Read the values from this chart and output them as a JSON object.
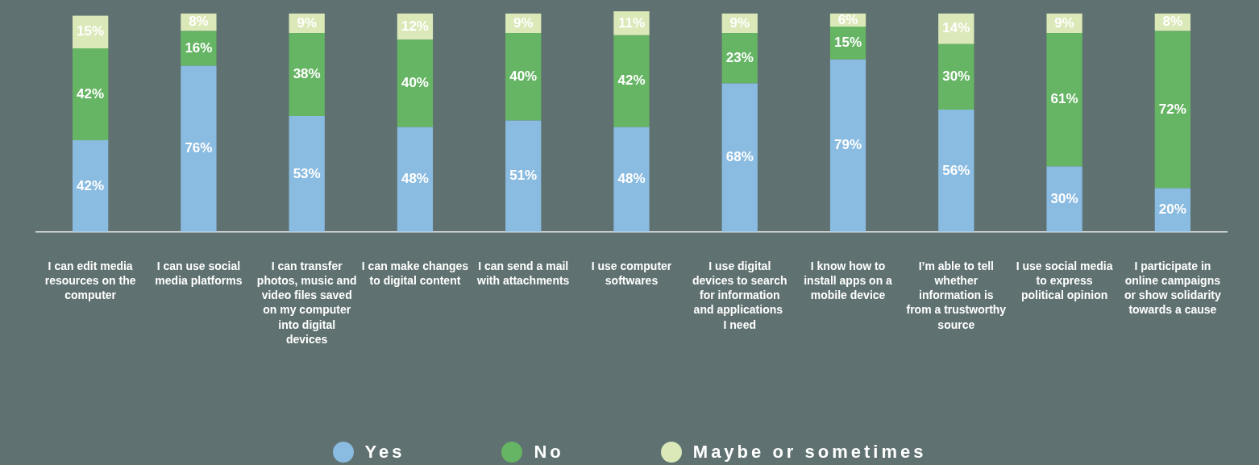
{
  "chart_data": {
    "type": "bar",
    "stacked": true,
    "legend": "bottom",
    "grid": false,
    "tick_labels": "x",
    "categories": [
      "I can edit media resources on the computer",
      "I can use social media platforms",
      "I can transfer photos, music and video files saved on my computer into digital devices",
      "I can make changes to digital content",
      "I can send a mail with attachments",
      "I use computer softwares",
      "I use digital devices to search for information and applications  I need",
      "I know how to install apps on a mobile device",
      "I’m able to tell whether information is from a trustworthy source",
      "I use social media to express political opinion",
      "I participate in online campaigns or show solidarity towards a cause"
    ],
    "series": [
      {
        "name": "Yes",
        "color": "#8abbe0",
        "values": [
          42,
          76,
          53,
          48,
          51,
          48,
          68,
          79,
          56,
          30,
          20
        ],
        "value_labels": [
          "42%",
          "76%",
          "53%",
          "48%",
          "51%",
          "48%",
          "68%",
          "79%",
          "56%",
          "30%",
          "20%"
        ]
      },
      {
        "name": "No",
        "color": "#66b564",
        "values": [
          42,
          16,
          38,
          40,
          40,
          42,
          23,
          15,
          30,
          61,
          72
        ],
        "value_labels": [
          "42%",
          "16%",
          "38%",
          "40%",
          "40%",
          "42%",
          "23%",
          "15%",
          "30%",
          "61%",
          "72%"
        ]
      },
      {
        "name": "Maybe or sometimes",
        "color": "#dbe8b8",
        "values": [
          15,
          8,
          9,
          12,
          9,
          11,
          9,
          6,
          14,
          9,
          8
        ],
        "value_labels": [
          "15%",
          "8%",
          "9%",
          "12%",
          "9%",
          "11%",
          "9%",
          "6%",
          "14%",
          "9%",
          "8%"
        ]
      }
    ]
  }
}
